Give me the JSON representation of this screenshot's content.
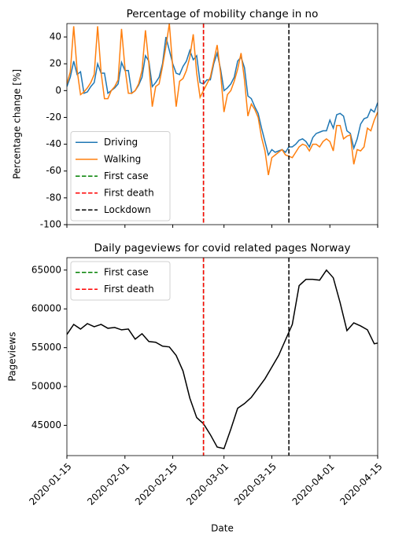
{
  "chart_data": [
    {
      "type": "line",
      "title": "Percentage of mobility change in no",
      "ylabel": "Percentage change [%]",
      "x": [
        "2020-01-15",
        "2020-01-16",
        "2020-01-17",
        "2020-01-18",
        "2020-01-19",
        "2020-01-20",
        "2020-01-21",
        "2020-01-22",
        "2020-01-23",
        "2020-01-24",
        "2020-01-25",
        "2020-01-26",
        "2020-01-27",
        "2020-01-28",
        "2020-01-29",
        "2020-01-30",
        "2020-01-31",
        "2020-02-01",
        "2020-02-02",
        "2020-02-03",
        "2020-02-04",
        "2020-02-05",
        "2020-02-06",
        "2020-02-07",
        "2020-02-08",
        "2020-02-09",
        "2020-02-10",
        "2020-02-11",
        "2020-02-12",
        "2020-02-13",
        "2020-02-14",
        "2020-02-15",
        "2020-02-16",
        "2020-02-17",
        "2020-02-18",
        "2020-02-19",
        "2020-02-20",
        "2020-02-21",
        "2020-02-22",
        "2020-02-23",
        "2020-02-24",
        "2020-02-25",
        "2020-02-26",
        "2020-02-27",
        "2020-02-28",
        "2020-02-29",
        "2020-03-01",
        "2020-03-02",
        "2020-03-03",
        "2020-03-04",
        "2020-03-05",
        "2020-03-06",
        "2020-03-07",
        "2020-03-08",
        "2020-03-09",
        "2020-03-10",
        "2020-03-11",
        "2020-03-12",
        "2020-03-13",
        "2020-03-14",
        "2020-03-15",
        "2020-03-16",
        "2020-03-17",
        "2020-03-18",
        "2020-03-19",
        "2020-03-20",
        "2020-03-21",
        "2020-03-22",
        "2020-03-23",
        "2020-03-24",
        "2020-03-25",
        "2020-03-26",
        "2020-03-27",
        "2020-03-28",
        "2020-03-29",
        "2020-03-30",
        "2020-03-31",
        "2020-04-01",
        "2020-04-02",
        "2020-04-03",
        "2020-04-04",
        "2020-04-05",
        "2020-04-06",
        "2020-04-07",
        "2020-04-08",
        "2020-04-09",
        "2020-04-10",
        "2020-04-11",
        "2020-04-12",
        "2020-04-13",
        "2020-04-14",
        "2020-04-15"
      ],
      "series": [
        {
          "name": "Driving",
          "color": "#1f77b4",
          "values": [
            3,
            10,
            22,
            12,
            14,
            -2,
            -1,
            3,
            6,
            20,
            13,
            13,
            -2,
            0,
            2,
            5,
            21,
            15,
            15,
            -2,
            0,
            4,
            10,
            26,
            22,
            3,
            6,
            10,
            20,
            40,
            30,
            20,
            13,
            12,
            18,
            22,
            30,
            23,
            26,
            6,
            5,
            8,
            8,
            20,
            28,
            16,
            0,
            2,
            5,
            10,
            22,
            25,
            17,
            -4,
            -6,
            -12,
            -17,
            -28,
            -38,
            -48,
            -44,
            -46,
            -45,
            -44,
            -46,
            -42,
            -42,
            -40,
            -37,
            -36,
            -38,
            -42,
            -35,
            -32,
            -31,
            -30,
            -30,
            -22,
            -28,
            -18,
            -17,
            -19,
            -30,
            -32,
            -43,
            -36,
            -25,
            -21,
            -20,
            -14,
            -16,
            -9
          ]
        },
        {
          "name": "Walking",
          "color": "#ff7f0e",
          "values": [
            5,
            14,
            48,
            15,
            -3,
            -1,
            2,
            6,
            12,
            48,
            14,
            -6,
            -6,
            0,
            3,
            8,
            46,
            17,
            -2,
            -2,
            0,
            5,
            15,
            45,
            20,
            -12,
            3,
            5,
            18,
            33,
            50,
            17,
            -12,
            7,
            9,
            15,
            25,
            42,
            13,
            -5,
            0,
            5,
            10,
            22,
            34,
            13,
            -16,
            -3,
            0,
            7,
            16,
            28,
            8,
            -19,
            -10,
            -14,
            -20,
            -35,
            -45,
            -63,
            -50,
            -48,
            -46,
            -44,
            -48,
            -49,
            -50,
            -46,
            -42,
            -40,
            -41,
            -45,
            -40,
            -40,
            -42,
            -38,
            -36,
            -38,
            -45,
            -26,
            -26,
            -36,
            -34,
            -33,
            -55,
            -44,
            -45,
            -42,
            -28,
            -30,
            -22,
            -16
          ]
        }
      ],
      "vlines": [
        {
          "name": "First case",
          "date": "2020-02-24",
          "color": "#008000"
        },
        {
          "name": "First death",
          "date": "2020-02-24",
          "color": "#ff0000"
        },
        {
          "name": "Lockdown",
          "date": "2020-03-20",
          "color": "#000000"
        }
      ],
      "xlim": [
        "2020-01-15",
        "2020-04-15"
      ],
      "xticks": [
        "2020-01-15",
        "2020-02-01",
        "2020-02-15",
        "2020-03-01",
        "2020-03-15",
        "2020-04-01",
        "2020-04-15"
      ],
      "xtick_labels": false,
      "ylim": [
        -100,
        50
      ],
      "yticks": [
        40,
        20,
        0,
        -20,
        -40,
        -60,
        -80,
        -100
      ],
      "legend": "lower left"
    },
    {
      "type": "line",
      "title": "Daily pageviews for covid related pages Norway",
      "ylabel": "Pageviews",
      "xlabel": "Date",
      "x": [
        "2020-01-15",
        "2020-01-17",
        "2020-01-19",
        "2020-01-21",
        "2020-01-23",
        "2020-01-25",
        "2020-01-27",
        "2020-01-29",
        "2020-01-31",
        "2020-02-02",
        "2020-02-04",
        "2020-02-06",
        "2020-02-08",
        "2020-02-10",
        "2020-02-12",
        "2020-02-14",
        "2020-02-16",
        "2020-02-18",
        "2020-02-20",
        "2020-02-22",
        "2020-02-24",
        "2020-02-26",
        "2020-02-28",
        "2020-03-01",
        "2020-03-03",
        "2020-03-05",
        "2020-03-07",
        "2020-03-09",
        "2020-03-11",
        "2020-03-13",
        "2020-03-15",
        "2020-03-17",
        "2020-03-19",
        "2020-03-21",
        "2020-03-23",
        "2020-03-25",
        "2020-03-27",
        "2020-03-29",
        "2020-03-31",
        "2020-04-02",
        "2020-04-04",
        "2020-04-06",
        "2020-04-08",
        "2020-04-10",
        "2020-04-12",
        "2020-04-14",
        "2020-04-15"
      ],
      "series": [
        {
          "name": "Pageviews",
          "color": "#000000",
          "values": [
            56700,
            58000,
            57400,
            58100,
            57700,
            58000,
            57500,
            57600,
            57300,
            57400,
            56100,
            56800,
            55800,
            55700,
            55200,
            55100,
            54000,
            52000,
            48500,
            46000,
            45200,
            43800,
            42200,
            42000,
            44500,
            47200,
            47800,
            48600,
            49800,
            51000,
            52500,
            54000,
            56000,
            58000,
            63000,
            63800,
            63800,
            63700,
            65000,
            64000,
            60800,
            57200,
            58200,
            57800,
            57300,
            55500,
            55600
          ],
          "in_legend": false
        }
      ],
      "vlines": [
        {
          "name": "First case",
          "date": "2020-02-24",
          "color": "#008000"
        },
        {
          "name": "First death",
          "date": "2020-02-24",
          "color": "#ff0000"
        },
        {
          "name": "Lockdown",
          "date": "2020-03-20",
          "color": "#000000",
          "in_legend": false
        }
      ],
      "xlim": [
        "2020-01-15",
        "2020-04-15"
      ],
      "xticks": [
        "2020-01-15",
        "2020-02-01",
        "2020-02-15",
        "2020-03-01",
        "2020-03-15",
        "2020-04-01",
        "2020-04-15"
      ],
      "xtick_labels": true,
      "ylim": [
        41100,
        66600
      ],
      "yticks": [
        65000,
        60000,
        55000,
        50000,
        45000
      ],
      "legend": "upper left"
    }
  ]
}
